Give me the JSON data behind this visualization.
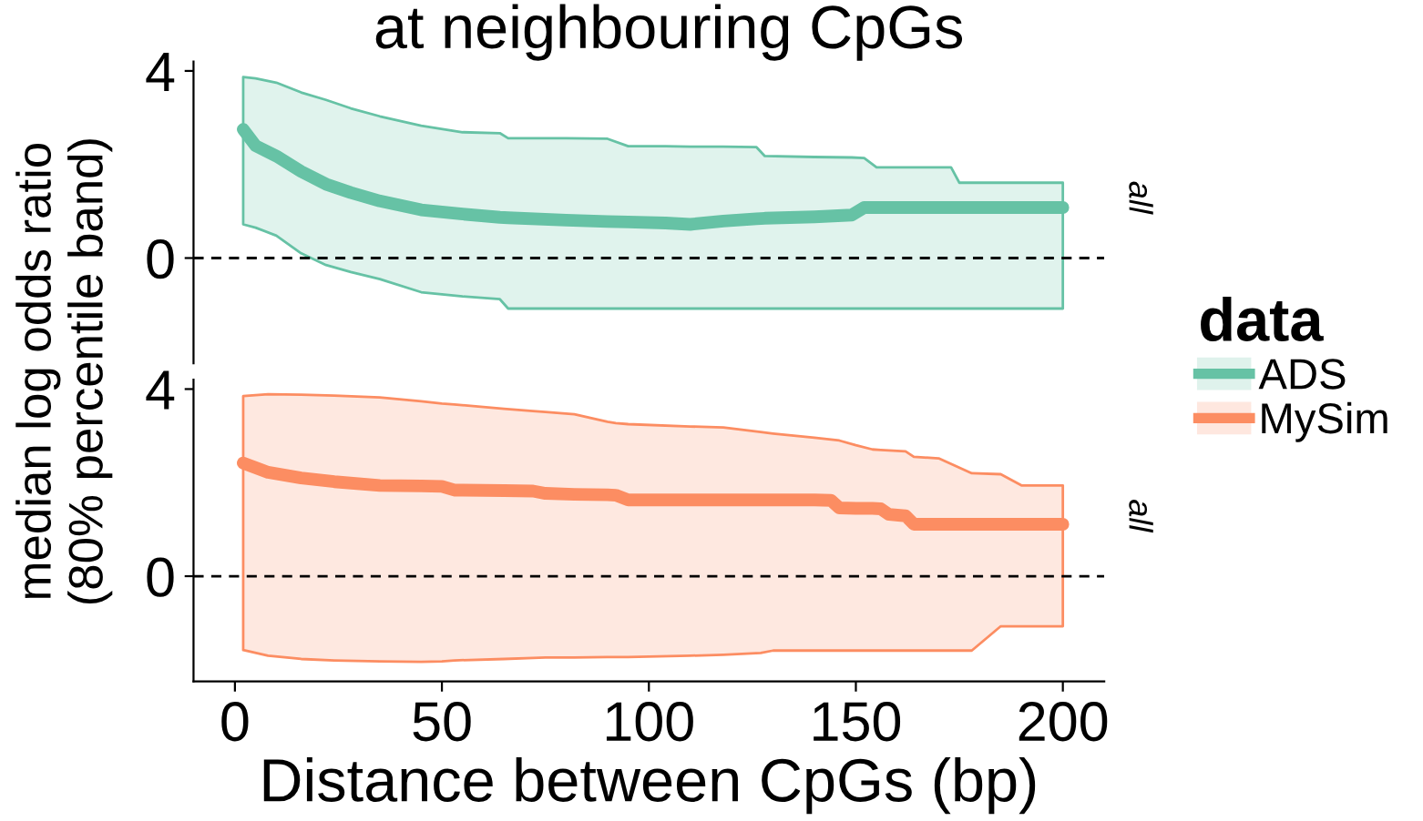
{
  "chart_data": [
    {
      "type": "line",
      "title": "at neighbouring CpGs",
      "ylabel": "median log odds ratio\n(80% percentile band)",
      "legend_title": "data",
      "legend": "right",
      "annotations": [
        "all"
      ],
      "tick_labels": "y",
      "xlim": [
        -10,
        210
      ],
      "ylim": [
        -2.25,
        4.2
      ],
      "yticks": [
        0,
        4
      ],
      "ref_lines": [
        {
          "axis": "y",
          "value": 0,
          "color": "#000000",
          "line_style": "dashed"
        }
      ],
      "series": [
        {
          "name": "ADS",
          "color": "#66c2a5",
          "x": [
            2,
            5,
            10,
            16,
            22,
            28,
            35,
            45,
            55,
            64,
            66,
            80,
            90,
            95,
            104,
            110,
            118,
            126,
            128,
            140,
            149,
            152,
            155,
            165,
            173,
            175,
            190,
            200
          ],
          "values": [
            2.75,
            2.4,
            2.18,
            1.85,
            1.58,
            1.4,
            1.22,
            1.03,
            0.94,
            0.87,
            0.86,
            0.81,
            0.78,
            0.77,
            0.75,
            0.72,
            0.79,
            0.84,
            0.85,
            0.88,
            0.92,
            1.08,
            1.08,
            1.08,
            1.08,
            1.08,
            1.08,
            1.08
          ],
          "upper": [
            3.87,
            3.84,
            3.75,
            3.54,
            3.38,
            3.2,
            3.03,
            2.83,
            2.69,
            2.67,
            2.56,
            2.56,
            2.55,
            2.39,
            2.39,
            2.38,
            2.38,
            2.37,
            2.18,
            2.16,
            2.15,
            2.14,
            1.94,
            1.94,
            1.94,
            1.61,
            1.61,
            1.61
          ],
          "lower": [
            0.72,
            0.65,
            0.48,
            0.1,
            -0.15,
            -0.3,
            -0.45,
            -0.73,
            -0.82,
            -0.88,
            -1.08,
            -1.08,
            -1.08,
            -1.08,
            -1.08,
            -1.08,
            -1.08,
            -1.08,
            -1.08,
            -1.08,
            -1.08,
            -1.08,
            -1.08,
            -1.08,
            -1.08,
            -1.08,
            -1.08,
            -1.08
          ]
        }
      ]
    },
    {
      "type": "line",
      "xlabel": "Distance between CpGs (bp)",
      "annotations": [
        "all"
      ],
      "xlim": [
        -10,
        210
      ],
      "ylim": [
        -2.25,
        4.2
      ],
      "xticks": [
        0,
        50,
        100,
        150,
        200
      ],
      "yticks": [
        0,
        4
      ],
      "ref_lines": [
        {
          "axis": "y",
          "value": 0,
          "color": "#000000",
          "line_style": "dashed"
        }
      ],
      "series": [
        {
          "name": "MySim",
          "color": "#fc8d62",
          "x": [
            2,
            8,
            16,
            24,
            35,
            45,
            50,
            53,
            65,
            72,
            75,
            82,
            90,
            92,
            95,
            110,
            118,
            127,
            130,
            140,
            144,
            146,
            150,
            154,
            156,
            158,
            162,
            164,
            170,
            178,
            185,
            190,
            200
          ],
          "values": [
            2.42,
            2.22,
            2.1,
            2.02,
            1.94,
            1.93,
            1.92,
            1.84,
            1.83,
            1.82,
            1.77,
            1.75,
            1.74,
            1.73,
            1.63,
            1.63,
            1.63,
            1.63,
            1.63,
            1.63,
            1.62,
            1.46,
            1.45,
            1.45,
            1.44,
            1.32,
            1.29,
            1.11,
            1.11,
            1.11,
            1.11,
            1.11,
            1.11
          ],
          "upper": [
            3.85,
            3.89,
            3.88,
            3.86,
            3.82,
            3.74,
            3.69,
            3.67,
            3.58,
            3.53,
            3.51,
            3.46,
            3.3,
            3.27,
            3.25,
            3.2,
            3.18,
            3.08,
            3.05,
            2.96,
            2.92,
            2.9,
            2.8,
            2.71,
            2.7,
            2.69,
            2.67,
            2.55,
            2.52,
            2.2,
            2.18,
            1.94,
            1.94
          ],
          "lower": [
            -1.58,
            -1.7,
            -1.77,
            -1.8,
            -1.82,
            -1.83,
            -1.82,
            -1.8,
            -1.77,
            -1.75,
            -1.74,
            -1.74,
            -1.73,
            -1.73,
            -1.73,
            -1.7,
            -1.68,
            -1.64,
            -1.59,
            -1.59,
            -1.59,
            -1.59,
            -1.59,
            -1.59,
            -1.59,
            -1.59,
            -1.59,
            -1.59,
            -1.59,
            -1.59,
            -1.07,
            -1.07,
            -1.07
          ]
        }
      ]
    }
  ]
}
